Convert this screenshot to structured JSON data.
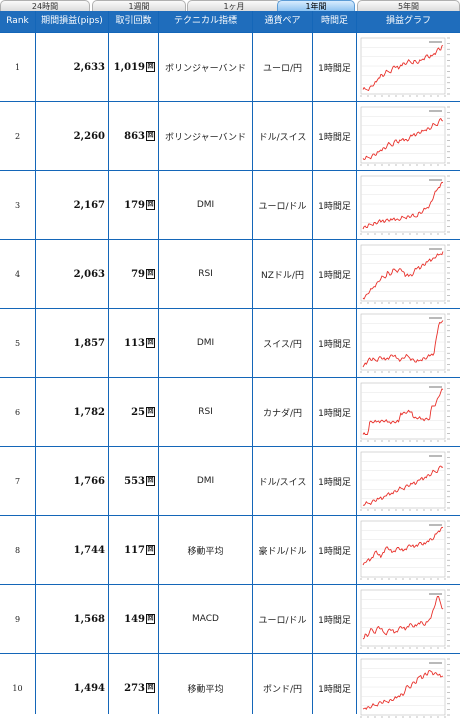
{
  "tabs": [
    "24時間",
    "1週間",
    "1ヶ月",
    "1年間",
    "5年間"
  ],
  "active_tab": 3,
  "columns": [
    "Rank",
    "期間損益(pips)",
    "取引回数",
    "テクニカル指標",
    "通貨ペア",
    "時間足",
    "損益グラフ"
  ],
  "count_suffix": "回",
  "line_color": "#e8302a",
  "rows": [
    {
      "rank": "1",
      "pips": "2,633",
      "trades": "1,019",
      "indicator": "ボリンジャーバンド",
      "pair": "ユーロ/円",
      "timeframe": "1時間足",
      "graph": [
        0.05,
        0.06,
        0.04,
        0.09,
        0.12,
        0.15,
        0.2,
        0.28,
        0.35,
        0.31,
        0.38,
        0.42,
        0.39,
        0.45,
        0.52,
        0.5,
        0.46,
        0.54,
        0.58,
        0.55,
        0.6,
        0.62,
        0.57,
        0.63,
        0.6,
        0.58,
        0.63,
        0.66,
        0.7,
        0.74,
        0.68,
        0.72,
        0.77,
        0.8,
        0.88,
        0.84,
        0.93
      ]
    },
    {
      "rank": "2",
      "pips": "2,260",
      "trades": "863",
      "indicator": "ボリンジャーバンド",
      "pair": "ドル/スイス",
      "timeframe": "1時間足",
      "graph": [
        0.05,
        0.04,
        0.08,
        0.06,
        0.1,
        0.14,
        0.12,
        0.18,
        0.22,
        0.26,
        0.24,
        0.32,
        0.35,
        0.3,
        0.38,
        0.42,
        0.36,
        0.41,
        0.45,
        0.43,
        0.4,
        0.47,
        0.5,
        0.55,
        0.52,
        0.58,
        0.56,
        0.6,
        0.62,
        0.66,
        0.63,
        0.69,
        0.74,
        0.71,
        0.78,
        0.85,
        0.8
      ]
    },
    {
      "rank": "3",
      "pips": "2,167",
      "trades": "179",
      "indicator": "DMI",
      "pair": "ユーロ/ドル",
      "timeframe": "1時間足",
      "graph": [
        0.02,
        0.08,
        0.05,
        0.12,
        0.1,
        0.15,
        0.12,
        0.18,
        0.16,
        0.2,
        0.17,
        0.22,
        0.18,
        0.2,
        0.24,
        0.21,
        0.2,
        0.22,
        0.26,
        0.24,
        0.28,
        0.25,
        0.3,
        0.27,
        0.26,
        0.35,
        0.33,
        0.38,
        0.42,
        0.45,
        0.5,
        0.58,
        0.7,
        0.78,
        0.85,
        0.92,
        0.95
      ]
    },
    {
      "rank": "4",
      "pips": "2,063",
      "trades": "79",
      "indicator": "RSI",
      "pair": "NZドル/円",
      "timeframe": "1時間足",
      "graph": [
        0.02,
        0.05,
        0.1,
        0.15,
        0.2,
        0.25,
        0.3,
        0.35,
        0.4,
        0.45,
        0.42,
        0.55,
        0.48,
        0.52,
        0.6,
        0.56,
        0.58,
        0.6,
        0.55,
        0.45,
        0.5,
        0.48,
        0.46,
        0.55,
        0.6,
        0.65,
        0.62,
        0.7,
        0.68,
        0.74,
        0.8,
        0.78,
        0.82,
        0.85,
        0.88,
        0.9,
        0.95
      ]
    },
    {
      "rank": "5",
      "pips": "1,857",
      "trades": "113",
      "indicator": "DMI",
      "pair": "スイス/円",
      "timeframe": "1時間足",
      "graph": [
        0.02,
        0.1,
        0.12,
        0.2,
        0.15,
        0.18,
        0.14,
        0.2,
        0.22,
        0.18,
        0.16,
        0.2,
        0.22,
        0.26,
        0.24,
        0.2,
        0.18,
        0.16,
        0.2,
        0.22,
        0.25,
        0.2,
        0.18,
        0.15,
        0.12,
        0.14,
        0.16,
        0.2,
        0.18,
        0.22,
        0.24,
        0.28,
        0.3,
        0.6,
        0.85,
        0.9,
        0.95
      ]
    },
    {
      "rank": "6",
      "pips": "1,782",
      "trades": "25",
      "indicator": "RSI",
      "pair": "カナダ/円",
      "timeframe": "1時間足",
      "graph": [
        0.05,
        0.05,
        0.05,
        0.3,
        0.3,
        0.3,
        0.3,
        0.32,
        0.32,
        0.32,
        0.32,
        0.3,
        0.3,
        0.3,
        0.3,
        0.3,
        0.3,
        0.48,
        0.48,
        0.48,
        0.5,
        0.5,
        0.5,
        0.38,
        0.38,
        0.38,
        0.36,
        0.36,
        0.36,
        0.36,
        0.36,
        0.62,
        0.62,
        0.7,
        0.8,
        0.9,
        0.95
      ]
    },
    {
      "rank": "7",
      "pips": "1,766",
      "trades": "553",
      "indicator": "DMI",
      "pair": "ドル/スイス",
      "timeframe": "1時間足",
      "graph": [
        0.02,
        0.04,
        0.06,
        0.05,
        0.08,
        0.12,
        0.1,
        0.14,
        0.18,
        0.15,
        0.2,
        0.24,
        0.22,
        0.26,
        0.3,
        0.28,
        0.33,
        0.36,
        0.34,
        0.38,
        0.42,
        0.4,
        0.44,
        0.48,
        0.45,
        0.52,
        0.55,
        0.52,
        0.58,
        0.62,
        0.6,
        0.66,
        0.7,
        0.67,
        0.75,
        0.8,
        0.78
      ]
    },
    {
      "rank": "8",
      "pips": "1,744",
      "trades": "117",
      "indicator": "移動平均",
      "pair": "豪ドル/ドル",
      "timeframe": "1時間足",
      "graph": [
        0.2,
        0.25,
        0.3,
        0.28,
        0.35,
        0.42,
        0.48,
        0.4,
        0.35,
        0.45,
        0.52,
        0.56,
        0.5,
        0.45,
        0.48,
        0.52,
        0.55,
        0.5,
        0.48,
        0.52,
        0.56,
        0.6,
        0.58,
        0.55,
        0.6,
        0.62,
        0.65,
        0.6,
        0.62,
        0.68,
        0.72,
        0.7,
        0.75,
        0.82,
        0.88,
        0.92,
        0.95
      ]
    },
    {
      "rank": "9",
      "pips": "1,568",
      "trades": "149",
      "indicator": "MACD",
      "pair": "ユーロ/ドル",
      "timeframe": "1時間足",
      "graph": [
        0.1,
        0.2,
        0.15,
        0.25,
        0.3,
        0.22,
        0.28,
        0.35,
        0.3,
        0.25,
        0.2,
        0.24,
        0.3,
        0.28,
        0.22,
        0.25,
        0.3,
        0.35,
        0.32,
        0.28,
        0.35,
        0.4,
        0.38,
        0.34,
        0.36,
        0.42,
        0.45,
        0.4,
        0.38,
        0.44,
        0.5,
        0.6,
        0.72,
        0.88,
        0.95,
        0.8,
        0.7
      ]
    },
    {
      "rank": "10",
      "pips": "1,494",
      "trades": "273",
      "indicator": "移動平均",
      "pair": "ポンド/円",
      "timeframe": "1時間足",
      "graph": [
        0.08,
        0.1,
        0.12,
        0.1,
        0.14,
        0.16,
        0.15,
        0.2,
        0.22,
        0.2,
        0.24,
        0.22,
        0.26,
        0.25,
        0.28,
        0.3,
        0.34,
        0.38,
        0.35,
        0.45,
        0.55,
        0.5,
        0.58,
        0.62,
        0.6,
        0.72,
        0.75,
        0.7,
        0.8,
        0.76,
        0.85,
        0.82,
        0.78,
        0.8,
        0.76,
        0.72,
        0.74
      ]
    }
  ]
}
